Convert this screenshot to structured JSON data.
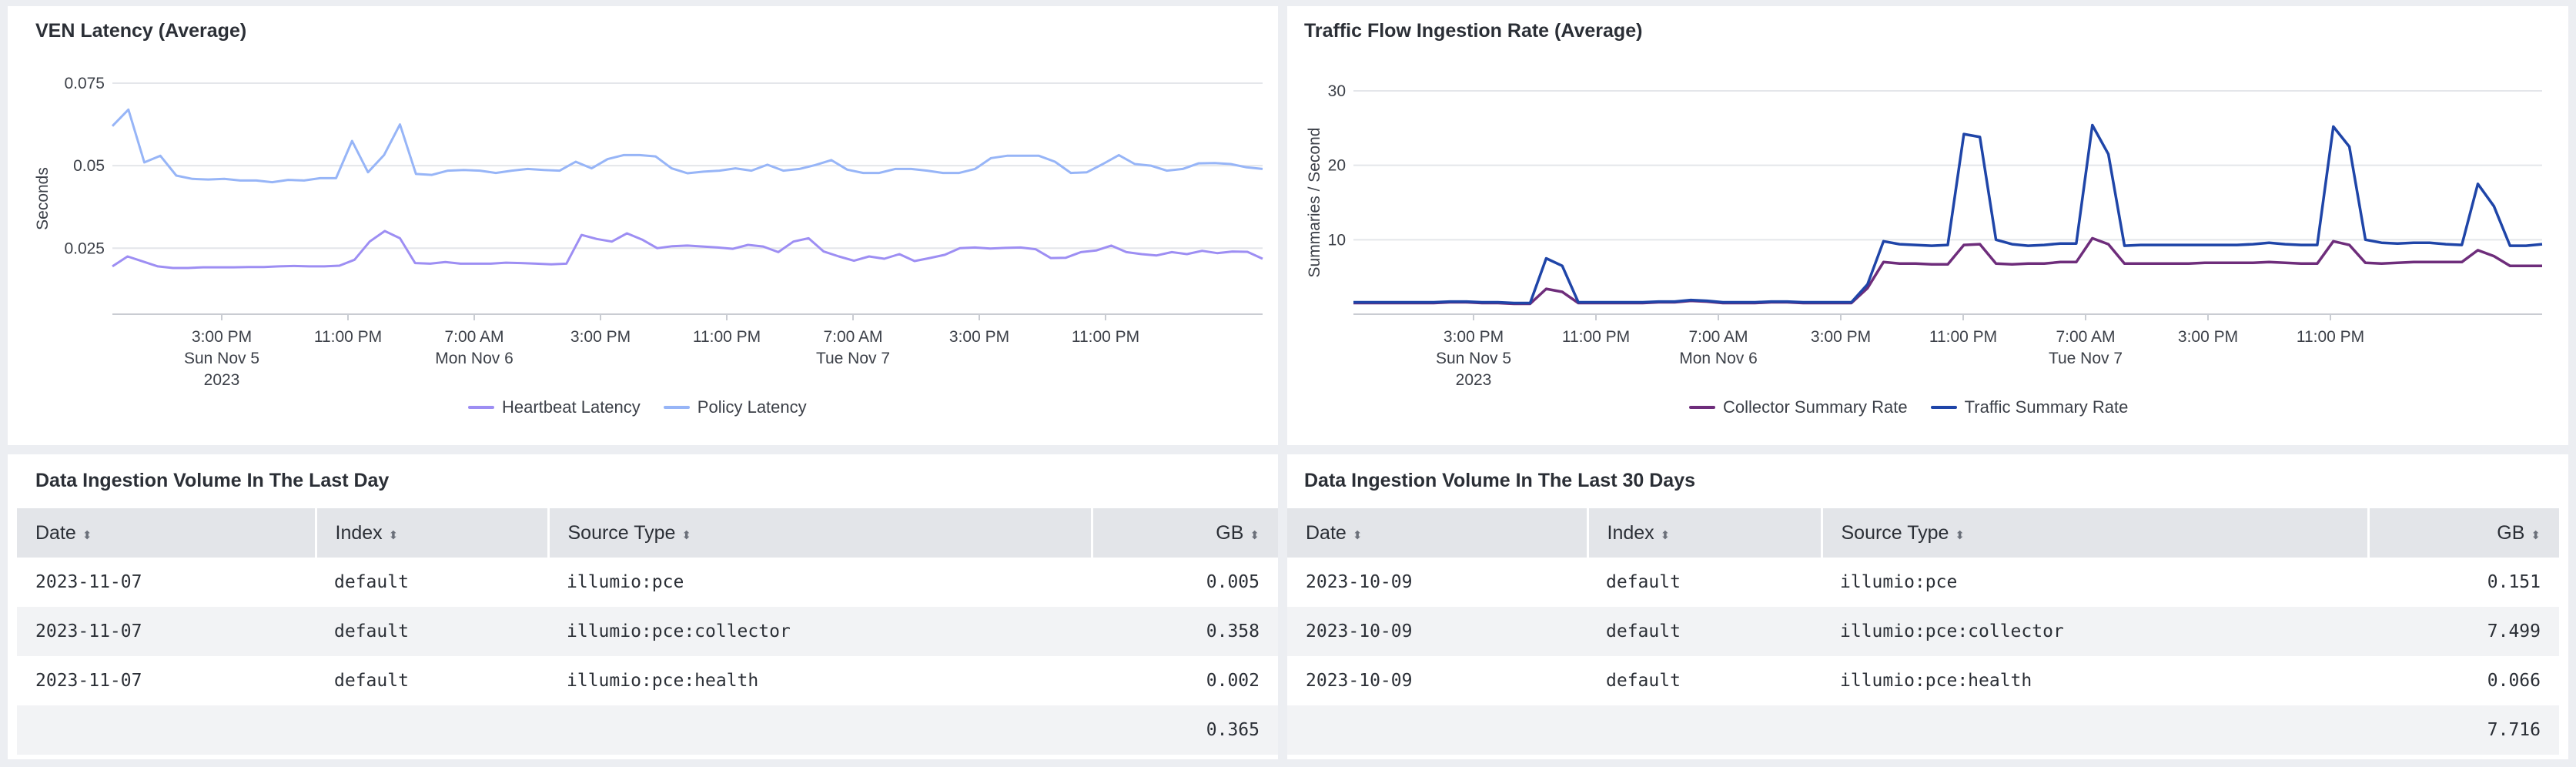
{
  "colors": {
    "heartbeat": "#9d8ef3",
    "policy": "#97b5f7",
    "collector": "#6e2d7b",
    "traffic": "#1f45a8",
    "grid": "#e4e6ea"
  },
  "ven_panel": {
    "title": "VEN Latency (Average)",
    "chart_data": {
      "type": "line",
      "title": "VEN Latency (Average)",
      "ylabel": "Seconds",
      "xlabel": "",
      "ylim": [
        0.005,
        0.075
      ],
      "yticks": [
        "0.025",
        "0.05",
        "0.075"
      ],
      "xtick_labels": [
        {
          "line1": "3:00 PM",
          "line2": "Sun Nov 5",
          "line3": "2023"
        },
        {
          "line1": "11:00 PM",
          "line2": "",
          "line3": ""
        },
        {
          "line1": "7:00 AM",
          "line2": "Mon Nov 6",
          "line3": ""
        },
        {
          "line1": "3:00 PM",
          "line2": "",
          "line3": ""
        },
        {
          "line1": "11:00 PM",
          "line2": "",
          "line3": ""
        },
        {
          "line1": "7:00 AM",
          "line2": "Tue Nov 7",
          "line3": ""
        },
        {
          "line1": "3:00 PM",
          "line2": "",
          "line3": ""
        },
        {
          "line1": "11:00 PM",
          "line2": "",
          "line3": ""
        }
      ],
      "series": [
        {
          "name": "Heartbeat Latency",
          "values": [
            0.0195,
            0.0225,
            0.021,
            0.0195,
            0.019,
            0.019,
            0.0192,
            0.0192,
            0.0192,
            0.0193,
            0.0193,
            0.0195,
            0.0196,
            0.0195,
            0.0195,
            0.0197,
            0.0215,
            0.027,
            0.0302,
            0.028,
            0.0205,
            0.0203,
            0.0208,
            0.0203,
            0.0203,
            0.0203,
            0.0206,
            0.0205,
            0.0203,
            0.0201,
            0.0203,
            0.029,
            0.0278,
            0.027,
            0.0295,
            0.0276,
            0.025,
            0.0256,
            0.0258,
            0.0255,
            0.0252,
            0.0248,
            0.026,
            0.0255,
            0.0238,
            0.027,
            0.028,
            0.024,
            0.0225,
            0.0212,
            0.0225,
            0.0218,
            0.0232,
            0.0211,
            0.022,
            0.023,
            0.025,
            0.0252,
            0.0249,
            0.0251,
            0.0252,
            0.0247,
            0.022,
            0.0221,
            0.0238,
            0.0243,
            0.0258,
            0.0238,
            0.0232,
            0.0228,
            0.0238,
            0.0232,
            0.0242,
            0.0235,
            0.024,
            0.0239,
            0.0218
          ]
        },
        {
          "name": "Policy Latency",
          "values": [
            0.062,
            0.067,
            0.051,
            0.053,
            0.047,
            0.046,
            0.0458,
            0.046,
            0.0455,
            0.0455,
            0.045,
            0.0457,
            0.0455,
            0.0462,
            0.0462,
            0.0575,
            0.048,
            0.0532,
            0.0625,
            0.0475,
            0.0472,
            0.0485,
            0.0487,
            0.0485,
            0.0478,
            0.0485,
            0.049,
            0.0487,
            0.0485,
            0.0512,
            0.0492,
            0.052,
            0.0532,
            0.0532,
            0.0528,
            0.0492,
            0.0477,
            0.0482,
            0.0485,
            0.0492,
            0.0485,
            0.0503,
            0.0485,
            0.049,
            0.0502,
            0.0517,
            0.0488,
            0.0478,
            0.0478,
            0.049,
            0.049,
            0.0485,
            0.0478,
            0.0478,
            0.049,
            0.0523,
            0.053,
            0.053,
            0.053,
            0.0512,
            0.0478,
            0.048,
            0.0505,
            0.0532,
            0.0505,
            0.05,
            0.0485,
            0.049,
            0.0507,
            0.0508,
            0.0505,
            0.0495,
            0.049
          ]
        }
      ]
    },
    "legend": [
      "Heartbeat Latency",
      "Policy Latency"
    ]
  },
  "traffic_panel": {
    "title": "Traffic Flow Ingestion Rate (Average)",
    "chart_data": {
      "type": "line",
      "title": "Traffic Flow Ingestion Rate (Average)",
      "ylabel": "Summaries / Second",
      "xlabel": "",
      "ylim": [
        0,
        30
      ],
      "yticks": [
        "10",
        "20",
        "30"
      ],
      "xtick_labels": [
        {
          "line1": "3:00 PM",
          "line2": "Sun Nov 5",
          "line3": "2023"
        },
        {
          "line1": "11:00 PM",
          "line2": "",
          "line3": ""
        },
        {
          "line1": "7:00 AM",
          "line2": "Mon Nov 6",
          "line3": ""
        },
        {
          "line1": "3:00 PM",
          "line2": "",
          "line3": ""
        },
        {
          "line1": "11:00 PM",
          "line2": "",
          "line3": ""
        },
        {
          "line1": "7:00 AM",
          "line2": "Tue Nov 7",
          "line3": ""
        },
        {
          "line1": "3:00 PM",
          "line2": "",
          "line3": ""
        },
        {
          "line1": "11:00 PM",
          "line2": "",
          "line3": ""
        }
      ],
      "series": [
        {
          "name": "Collector Summary Rate",
          "values": [
            1.5,
            1.5,
            1.5,
            1.5,
            1.5,
            1.5,
            1.6,
            1.6,
            1.5,
            1.5,
            1.4,
            1.4,
            3.4,
            3.0,
            1.5,
            1.5,
            1.5,
            1.5,
            1.5,
            1.6,
            1.6,
            1.8,
            1.7,
            1.5,
            1.5,
            1.5,
            1.6,
            1.6,
            1.5,
            1.5,
            1.5,
            1.5,
            3.5,
            7.0,
            6.8,
            6.8,
            6.7,
            6.7,
            9.3,
            9.4,
            6.8,
            6.7,
            6.8,
            6.8,
            7.0,
            7.0,
            10.2,
            9.4,
            6.8,
            6.8,
            6.8,
            6.8,
            6.8,
            6.9,
            6.9,
            6.9,
            6.9,
            7.0,
            6.9,
            6.8,
            6.8,
            9.8,
            9.3,
            6.9,
            6.8,
            6.9,
            7.0,
            7.0,
            7.0,
            7.0,
            8.6,
            7.8,
            6.5,
            6.5,
            6.5
          ]
        },
        {
          "name": "Traffic Summary Rate",
          "values": [
            1.6,
            1.6,
            1.6,
            1.6,
            1.6,
            1.6,
            1.7,
            1.7,
            1.6,
            1.6,
            1.5,
            1.5,
            7.5,
            6.5,
            1.6,
            1.6,
            1.6,
            1.6,
            1.6,
            1.7,
            1.7,
            1.9,
            1.8,
            1.6,
            1.6,
            1.6,
            1.7,
            1.7,
            1.6,
            1.6,
            1.6,
            1.6,
            4.0,
            9.8,
            9.4,
            9.3,
            9.2,
            9.3,
            24.2,
            23.8,
            10.0,
            9.4,
            9.2,
            9.3,
            9.5,
            9.5,
            25.4,
            21.5,
            9.2,
            9.3,
            9.3,
            9.3,
            9.3,
            9.3,
            9.3,
            9.3,
            9.4,
            9.6,
            9.4,
            9.3,
            9.3,
            25.2,
            22.5,
            10.0,
            9.6,
            9.5,
            9.6,
            9.6,
            9.4,
            9.3,
            17.5,
            14.5,
            9.2,
            9.2,
            9.4
          ]
        }
      ]
    },
    "legend": [
      "Collector Summary Rate",
      "Traffic Summary Rate"
    ]
  },
  "day_table": {
    "title": "Data Ingestion Volume In The Last Day",
    "columns": [
      "Date",
      "Index",
      "Source Type",
      "GB"
    ],
    "rows": [
      [
        "2023-11-07",
        "default",
        "illumio:pce",
        "0.005"
      ],
      [
        "2023-11-07",
        "default",
        "illumio:pce:collector",
        "0.358"
      ],
      [
        "2023-11-07",
        "default",
        "illumio:pce:health",
        "0.002"
      ]
    ],
    "total": "0.365"
  },
  "month_table": {
    "title": "Data Ingestion Volume In The Last 30 Days",
    "columns": [
      "Date",
      "Index",
      "Source Type",
      "GB"
    ],
    "rows": [
      [
        "2023-10-09",
        "default",
        "illumio:pce",
        "0.151"
      ],
      [
        "2023-10-09",
        "default",
        "illumio:pce:collector",
        "7.499"
      ],
      [
        "2023-10-09",
        "default",
        "illumio:pce:health",
        "0.066"
      ]
    ],
    "total": "7.716"
  }
}
